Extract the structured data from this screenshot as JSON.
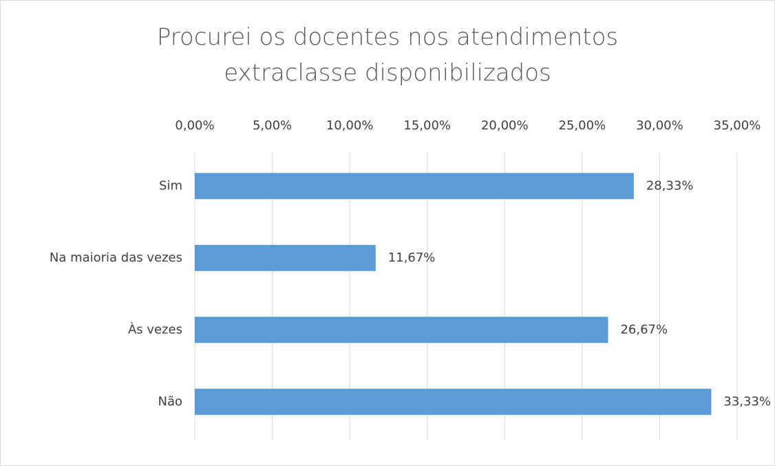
{
  "chart_data": {
    "type": "bar",
    "orientation": "horizontal",
    "title": "Procurei os docentes nos atendimentos extraclasse disponibilizados",
    "categories": [
      "Sim",
      "Na maioria das vezes",
      "Às vezes",
      "Não"
    ],
    "values": [
      28.33,
      11.67,
      26.67,
      33.33
    ],
    "value_labels": [
      "28,33%",
      "11,67%",
      "26,67%",
      "33,33%"
    ],
    "color": "#5b9bd5",
    "xlim": [
      0,
      35
    ],
    "xticks": [
      {
        "value": 0,
        "label": "0,00%"
      },
      {
        "value": 5,
        "label": "5,00%"
      },
      {
        "value": 10,
        "label": "10,00%"
      },
      {
        "value": 15,
        "label": "15,00%"
      },
      {
        "value": 20,
        "label": "20,00%"
      },
      {
        "value": 25,
        "label": "25,00%"
      },
      {
        "value": 30,
        "label": "30,00%"
      },
      {
        "value": 35,
        "label": "35,00%"
      }
    ],
    "grid": true
  }
}
